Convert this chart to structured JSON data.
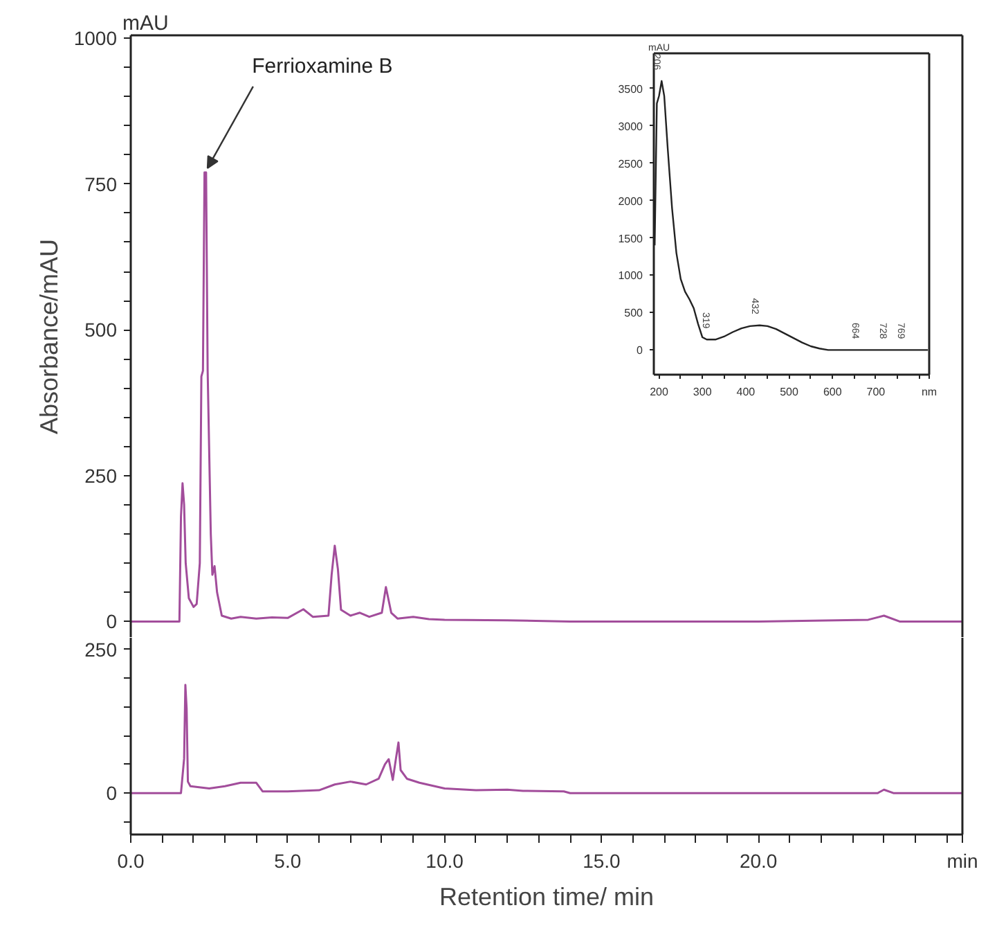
{
  "chart_data": [
    {
      "type": "line",
      "ylabel": "Absorbance/mAU",
      "xlim": [
        0,
        26.5
      ],
      "ylim": [
        -28,
        1005
      ],
      "yticks": [
        0,
        {
          "value": 50,
          "label": null
        },
        {
          "value": 100,
          "label": null
        },
        {
          "value": 150,
          "label": null
        },
        {
          "value": 200,
          "label": null
        },
        250,
        {
          "value": 300,
          "label": null
        },
        {
          "value": 350,
          "label": null
        },
        {
          "value": 400,
          "label": null
        },
        {
          "value": 450,
          "label": null
        },
        500,
        {
          "value": 550,
          "label": null
        },
        {
          "value": 600,
          "label": null
        },
        {
          "value": 650,
          "label": null
        },
        {
          "value": 700,
          "label": null
        },
        750,
        {
          "value": 800,
          "label": null
        },
        {
          "value": 850,
          "label": null
        },
        {
          "value": 900,
          "label": null
        },
        {
          "value": 950,
          "label": null
        },
        1000
      ],
      "tick_labels": "y",
      "annotations": [
        "mAU",
        {
          "text": "Ferrioxamine B",
          "x": 2.4,
          "y": 770
        }
      ],
      "series": [
        {
          "color": "#a24d9b",
          "x": [
            0,
            1.55,
            1.6,
            1.65,
            1.7,
            1.75,
            1.85,
            2.0,
            2.1,
            2.2,
            2.25,
            2.3,
            2.35,
            2.4,
            2.45,
            2.55,
            2.6,
            2.67,
            2.75,
            2.9,
            3.2,
            3.5,
            4.0,
            4.5,
            5.0,
            5.5,
            5.8,
            6.3,
            6.4,
            6.5,
            6.6,
            6.7,
            7.0,
            7.3,
            7.6,
            8.0,
            8.13,
            8.3,
            8.5,
            9.0,
            9.5,
            10,
            12,
            14,
            20,
            23.5,
            24,
            24.5,
            26.5
          ],
          "values": [
            0,
            0,
            180,
            237,
            200,
            100,
            40,
            25,
            30,
            100,
            420,
            430,
            770,
            770,
            430,
            150,
            80,
            95,
            50,
            10,
            5,
            8,
            5,
            7,
            6,
            21,
            8,
            10,
            80,
            130,
            90,
            20,
            10,
            15,
            8,
            15,
            59,
            15,
            5,
            8,
            4,
            3,
            2,
            0,
            0,
            3,
            10,
            0,
            0
          ]
        }
      ]
    },
    {
      "type": "line",
      "xlabel": "Retention time/ min",
      "xlim": [
        0,
        26.5
      ],
      "ylim": [
        -72,
        270
      ],
      "xticks": [
        {
          "value": 0,
          "label": "0.0"
        },
        {
          "value": 1,
          "label": null
        },
        {
          "value": 2,
          "label": null
        },
        {
          "value": 3,
          "label": null
        },
        {
          "value": 4,
          "label": null
        },
        {
          "value": 5,
          "label": "5.0"
        },
        {
          "value": 6,
          "label": null
        },
        {
          "value": 7,
          "label": null
        },
        {
          "value": 8,
          "label": null
        },
        {
          "value": 9,
          "label": null
        },
        {
          "value": 10,
          "label": "10.0"
        },
        {
          "value": 11,
          "label": null
        },
        {
          "value": 12,
          "label": null
        },
        {
          "value": 13,
          "label": null
        },
        {
          "value": 14,
          "label": null
        },
        {
          "value": 15,
          "label": "15.0"
        },
        {
          "value": 16,
          "label": null
        },
        {
          "value": 17,
          "label": null
        },
        {
          "value": 18,
          "label": null
        },
        {
          "value": 19,
          "label": null
        },
        {
          "value": 20,
          "label": "20.0"
        },
        {
          "value": 21,
          "label": null
        },
        {
          "value": 22,
          "label": null
        },
        {
          "value": 23,
          "label": null
        },
        {
          "value": 24,
          "label": null
        },
        {
          "value": 25,
          "label": null
        },
        {
          "value": 26,
          "label": null
        }
      ],
      "yticks": [
        {
          "value": -50,
          "label": null
        },
        0,
        {
          "value": 50,
          "label": null
        },
        {
          "value": 100,
          "label": null
        },
        {
          "value": 150,
          "label": null
        },
        {
          "value": 200,
          "label": null
        },
        250
      ],
      "annotations": [
        "min"
      ],
      "series": [
        {
          "color": "#a24d9b",
          "x": [
            0,
            1.6,
            1.7,
            1.74,
            1.78,
            1.82,
            1.9,
            2.5,
            3.0,
            3.5,
            4.0,
            4.2,
            5.0,
            6.0,
            6.5,
            7.0,
            7.5,
            7.9,
            8.1,
            8.22,
            8.35,
            8.45,
            8.53,
            8.6,
            8.8,
            9.2,
            10,
            11,
            12,
            12.5,
            13.8,
            14,
            20,
            23.8,
            24,
            24.3,
            26.5
          ],
          "values": [
            0,
            0,
            60,
            188,
            147,
            20,
            12,
            8,
            12,
            18,
            18,
            3,
            3,
            5,
            15,
            20,
            15,
            25,
            50,
            59,
            23,
            60,
            88,
            40,
            25,
            18,
            8,
            5,
            6,
            4,
            3,
            0,
            0,
            0,
            6,
            0,
            0
          ]
        }
      ]
    },
    {
      "type": "line",
      "xlim": [
        188,
        823
      ],
      "ylim": [
        -330,
        3970
      ],
      "xticks": [
        200,
        {
          "value": 250,
          "label": null
        },
        300,
        {
          "value": 350,
          "label": null
        },
        400,
        {
          "value": 450,
          "label": null
        },
        500,
        {
          "value": 550,
          "label": null
        },
        600,
        {
          "value": 650,
          "label": null
        },
        700,
        {
          "value": 750,
          "label": null
        },
        {
          "value": 800,
          "label": null
        }
      ],
      "yticks": [
        0,
        500,
        1000,
        1500,
        2000,
        2500,
        3000,
        3500
      ],
      "annotations": [
        "mAU",
        "nm",
        {
          "text": "206",
          "x": 206,
          "y": 3600
        },
        {
          "text": "319",
          "x": 319,
          "y": 140
        },
        {
          "text": "432",
          "x": 432,
          "y": 330
        },
        {
          "text": "664",
          "x": 664,
          "y": 0
        },
        {
          "text": "728",
          "x": 728,
          "y": 0
        },
        {
          "text": "769",
          "x": 769,
          "y": 0
        }
      ],
      "series": [
        {
          "color": "#222222",
          "x": [
            190,
            195,
            200,
            206,
            212,
            220,
            230,
            240,
            250,
            260,
            270,
            280,
            290,
            300,
            310,
            319,
            330,
            350,
            370,
            390,
            410,
            432,
            450,
            470,
            490,
            510,
            530,
            550,
            570,
            590,
            600,
            650,
            700,
            780,
            820
          ],
          "values": [
            1400,
            3300,
            3400,
            3600,
            3400,
            2700,
            1900,
            1300,
            950,
            780,
            680,
            560,
            350,
            170,
            140,
            140,
            140,
            180,
            240,
            290,
            320,
            330,
            320,
            280,
            220,
            160,
            100,
            50,
            20,
            0,
            0,
            0,
            0,
            0,
            0
          ]
        }
      ]
    }
  ]
}
